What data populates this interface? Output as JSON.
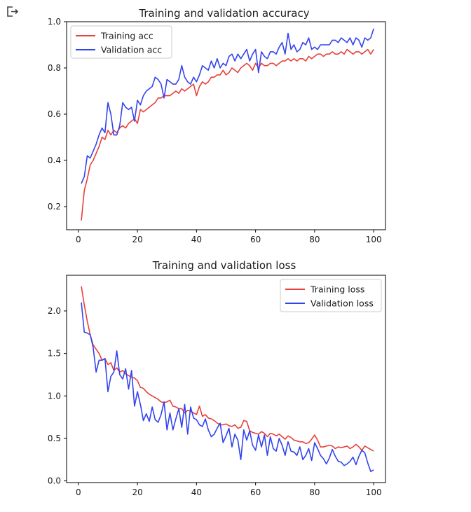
{
  "output_icon": "output-arrow-icon",
  "colors": {
    "training": "#e8403a",
    "validation": "#3344ee"
  },
  "chart_data": [
    {
      "type": "line",
      "title": "Training and validation accuracy",
      "xlabel": "",
      "ylabel": "",
      "xlim": [
        -4,
        104
      ],
      "ylim": [
        0.1,
        1.0
      ],
      "xticks": [
        "0",
        "20",
        "40",
        "60",
        "80",
        "100"
      ],
      "yticks": [
        "0.2",
        "0.4",
        "0.6",
        "0.8",
        "1.0"
      ],
      "legend_position": "top-left",
      "grid": false,
      "x": [
        1,
        2,
        3,
        4,
        5,
        6,
        7,
        8,
        9,
        10,
        11,
        12,
        13,
        14,
        15,
        16,
        17,
        18,
        19,
        20,
        21,
        22,
        23,
        24,
        25,
        26,
        27,
        28,
        29,
        30,
        31,
        32,
        33,
        34,
        35,
        36,
        37,
        38,
        39,
        40,
        41,
        42,
        43,
        44,
        45,
        46,
        47,
        48,
        49,
        50,
        51,
        52,
        53,
        54,
        55,
        56,
        57,
        58,
        59,
        60,
        61,
        62,
        63,
        64,
        65,
        66,
        67,
        68,
        69,
        70,
        71,
        72,
        73,
        74,
        75,
        76,
        77,
        78,
        79,
        80,
        81,
        82,
        83,
        84,
        85,
        86,
        87,
        88,
        89,
        90,
        91,
        92,
        93,
        94,
        95,
        96,
        97,
        98,
        99,
        100
      ],
      "series": [
        {
          "name": "Training acc",
          "values": [
            0.14,
            0.27,
            0.32,
            0.38,
            0.4,
            0.43,
            0.46,
            0.5,
            0.49,
            0.53,
            0.51,
            0.53,
            0.52,
            0.54,
            0.55,
            0.54,
            0.56,
            0.57,
            0.58,
            0.56,
            0.62,
            0.61,
            0.62,
            0.63,
            0.64,
            0.65,
            0.67,
            0.67,
            0.68,
            0.68,
            0.68,
            0.69,
            0.7,
            0.69,
            0.71,
            0.7,
            0.71,
            0.72,
            0.73,
            0.68,
            0.72,
            0.74,
            0.73,
            0.74,
            0.76,
            0.76,
            0.77,
            0.77,
            0.79,
            0.77,
            0.78,
            0.8,
            0.79,
            0.78,
            0.8,
            0.81,
            0.82,
            0.81,
            0.79,
            0.82,
            0.8,
            0.82,
            0.81,
            0.81,
            0.82,
            0.82,
            0.81,
            0.82,
            0.83,
            0.83,
            0.84,
            0.83,
            0.84,
            0.83,
            0.84,
            0.84,
            0.83,
            0.85,
            0.84,
            0.85,
            0.86,
            0.86,
            0.85,
            0.86,
            0.86,
            0.87,
            0.86,
            0.86,
            0.87,
            0.86,
            0.88,
            0.87,
            0.86,
            0.87,
            0.87,
            0.86,
            0.87,
            0.88,
            0.86,
            0.88
          ]
        },
        {
          "name": "Validation acc",
          "values": [
            0.3,
            0.33,
            0.42,
            0.41,
            0.44,
            0.47,
            0.51,
            0.54,
            0.52,
            0.65,
            0.6,
            0.51,
            0.51,
            0.55,
            0.65,
            0.63,
            0.62,
            0.63,
            0.57,
            0.66,
            0.64,
            0.68,
            0.7,
            0.71,
            0.72,
            0.76,
            0.75,
            0.73,
            0.67,
            0.75,
            0.74,
            0.73,
            0.73,
            0.75,
            0.81,
            0.76,
            0.74,
            0.73,
            0.76,
            0.74,
            0.77,
            0.81,
            0.8,
            0.79,
            0.83,
            0.8,
            0.84,
            0.8,
            0.82,
            0.81,
            0.85,
            0.86,
            0.83,
            0.86,
            0.84,
            0.86,
            0.88,
            0.83,
            0.86,
            0.88,
            0.78,
            0.87,
            0.85,
            0.84,
            0.87,
            0.87,
            0.86,
            0.89,
            0.91,
            0.86,
            0.95,
            0.88,
            0.9,
            0.87,
            0.88,
            0.91,
            0.9,
            0.93,
            0.88,
            0.89,
            0.88,
            0.9,
            0.9,
            0.9,
            0.9,
            0.92,
            0.92,
            0.91,
            0.93,
            0.92,
            0.91,
            0.93,
            0.9,
            0.93,
            0.92,
            0.89,
            0.93,
            0.92,
            0.93,
            0.97
          ]
        }
      ]
    },
    {
      "type": "line",
      "title": "Training and validation loss",
      "xlabel": "",
      "ylabel": "",
      "xlim": [
        -4,
        104
      ],
      "ylim": [
        -0.02,
        2.42
      ],
      "xticks": [
        "0",
        "20",
        "40",
        "60",
        "80",
        "100"
      ],
      "yticks": [
        "0.0",
        "0.5",
        "1.0",
        "1.5",
        "2.0"
      ],
      "legend_position": "top-right",
      "grid": false,
      "x": [
        1,
        2,
        3,
        4,
        5,
        6,
        7,
        8,
        9,
        10,
        11,
        12,
        13,
        14,
        15,
        16,
        17,
        18,
        19,
        20,
        21,
        22,
        23,
        24,
        25,
        26,
        27,
        28,
        29,
        30,
        31,
        32,
        33,
        34,
        35,
        36,
        37,
        38,
        39,
        40,
        41,
        42,
        43,
        44,
        45,
        46,
        47,
        48,
        49,
        50,
        51,
        52,
        53,
        54,
        55,
        56,
        57,
        58,
        59,
        60,
        61,
        62,
        63,
        64,
        65,
        66,
        67,
        68,
        69,
        70,
        71,
        72,
        73,
        74,
        75,
        76,
        77,
        78,
        79,
        80,
        81,
        82,
        83,
        84,
        85,
        86,
        87,
        88,
        89,
        90,
        91,
        92,
        93,
        94,
        95,
        96,
        97,
        98,
        99,
        100
      ],
      "series": [
        {
          "name": "Training loss",
          "values": [
            2.29,
            2.07,
            1.88,
            1.72,
            1.6,
            1.55,
            1.5,
            1.42,
            1.44,
            1.37,
            1.39,
            1.3,
            1.33,
            1.28,
            1.3,
            1.26,
            1.24,
            1.22,
            1.21,
            1.18,
            1.1,
            1.09,
            1.05,
            1.02,
            1.0,
            0.98,
            0.96,
            0.93,
            0.92,
            0.93,
            0.95,
            0.88,
            0.87,
            0.85,
            0.85,
            0.8,
            0.83,
            0.82,
            0.8,
            0.78,
            0.88,
            0.76,
            0.78,
            0.74,
            0.73,
            0.71,
            0.68,
            0.66,
            0.66,
            0.67,
            0.65,
            0.64,
            0.66,
            0.62,
            0.63,
            0.71,
            0.7,
            0.59,
            0.57,
            0.56,
            0.55,
            0.58,
            0.56,
            0.52,
            0.56,
            0.55,
            0.53,
            0.55,
            0.52,
            0.49,
            0.53,
            0.51,
            0.48,
            0.47,
            0.46,
            0.46,
            0.44,
            0.45,
            0.49,
            0.54,
            0.48,
            0.4,
            0.4,
            0.41,
            0.42,
            0.41,
            0.38,
            0.4,
            0.39,
            0.4,
            0.41,
            0.38,
            0.4,
            0.43,
            0.4,
            0.36,
            0.41,
            0.39,
            0.37,
            0.35
          ]
        },
        {
          "name": "Validation loss",
          "values": [
            2.1,
            1.75,
            1.74,
            1.72,
            1.57,
            1.28,
            1.42,
            1.42,
            1.44,
            1.05,
            1.23,
            1.28,
            1.53,
            1.25,
            1.2,
            1.32,
            1.08,
            1.3,
            0.88,
            1.05,
            0.9,
            0.71,
            0.79,
            0.7,
            0.87,
            0.72,
            0.69,
            0.78,
            0.93,
            0.6,
            0.8,
            0.6,
            0.73,
            0.85,
            0.63,
            0.9,
            0.55,
            0.87,
            0.74,
            0.72,
            0.66,
            0.64,
            0.73,
            0.6,
            0.52,
            0.55,
            0.62,
            0.68,
            0.45,
            0.53,
            0.62,
            0.4,
            0.55,
            0.48,
            0.25,
            0.6,
            0.48,
            0.59,
            0.42,
            0.36,
            0.54,
            0.4,
            0.54,
            0.3,
            0.52,
            0.38,
            0.35,
            0.5,
            0.42,
            0.3,
            0.46,
            0.35,
            0.34,
            0.3,
            0.4,
            0.25,
            0.3,
            0.38,
            0.24,
            0.45,
            0.38,
            0.3,
            0.26,
            0.2,
            0.27,
            0.37,
            0.29,
            0.23,
            0.22,
            0.18,
            0.2,
            0.23,
            0.28,
            0.19,
            0.29,
            0.36,
            0.33,
            0.21,
            0.11,
            0.13
          ]
        }
      ]
    }
  ]
}
